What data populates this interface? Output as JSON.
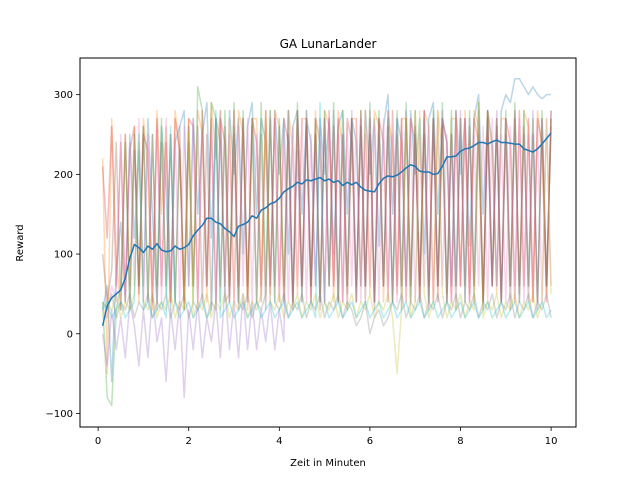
{
  "chart_data": {
    "type": "line",
    "title": "GA LunarLander",
    "xlabel": "Zeit in Minuten",
    "ylabel": "Reward",
    "xlim": [
      -0.4,
      10.55
    ],
    "ylim": [
      -117,
      346
    ],
    "xticks": [
      0,
      2,
      4,
      6,
      8,
      10
    ],
    "yticks": [
      -100,
      0,
      100,
      200,
      300
    ],
    "grid": false,
    "legend": "none",
    "x": [
      0.1,
      0.2,
      0.3,
      0.4,
      0.5,
      0.6,
      0.7,
      0.8,
      0.9,
      1.0,
      1.1,
      1.2,
      1.3,
      1.4,
      1.5,
      1.6,
      1.7,
      1.8,
      1.9,
      2.0,
      2.1,
      2.2,
      2.3,
      2.4,
      2.5,
      2.6,
      2.7,
      2.8,
      2.9,
      3.0,
      3.1,
      3.2,
      3.3,
      3.4,
      3.5,
      3.6,
      3.7,
      3.8,
      3.9,
      4.0,
      4.1,
      4.2,
      4.3,
      4.4,
      4.5,
      4.6,
      4.7,
      4.8,
      4.9,
      5.0,
      5.1,
      5.2,
      5.3,
      5.4,
      5.5,
      5.6,
      5.7,
      5.8,
      5.9,
      6.0,
      6.1,
      6.2,
      6.3,
      6.4,
      6.5,
      6.6,
      6.7,
      6.8,
      6.9,
      7.0,
      7.1,
      7.2,
      7.3,
      7.4,
      7.5,
      7.6,
      7.7,
      7.8,
      7.9,
      8.0,
      8.1,
      8.2,
      8.3,
      8.4,
      8.5,
      8.6,
      8.7,
      8.8,
      8.9,
      9.0,
      9.1,
      9.2,
      9.3,
      9.4,
      9.5,
      9.6,
      9.7,
      9.8,
      9.9,
      10.0
    ],
    "series": [
      {
        "values": [
          10,
          35,
          45,
          50,
          55,
          70,
          95,
          112,
          108,
          102,
          110,
          106,
          113,
          105,
          103,
          104,
          110,
          106,
          108,
          112,
          123,
          130,
          136,
          145,
          145,
          140,
          138,
          132,
          128,
          122,
          135,
          137,
          140,
          148,
          145,
          155,
          158,
          163,
          165,
          170,
          178,
          182,
          185,
          190,
          188,
          193,
          192,
          194,
          196,
          192,
          194,
          190,
          192,
          186,
          190,
          187,
          190,
          184,
          180,
          179,
          178,
          188,
          195,
          198,
          197,
          199,
          203,
          208,
          212,
          210,
          204,
          203,
          203,
          200,
          201,
          210,
          222,
          222,
          223,
          229,
          232,
          233,
          236,
          240,
          240,
          238,
          241,
          243,
          240,
          240,
          239,
          238,
          238,
          232,
          230,
          228,
          232,
          238,
          245,
          252
        ],
        "color": "#1f77b4",
        "opacity": 1.0,
        "width": 1.5
      },
      {
        "values": [
          30,
          60,
          -60,
          80,
          140,
          40,
          250,
          120,
          230,
          60,
          270,
          150,
          40,
          260,
          180,
          30,
          240,
          260,
          280,
          60,
          270,
          150,
          250,
          290,
          120,
          270,
          240,
          60,
          280,
          200,
          270,
          100,
          260,
          290,
          150,
          270,
          240,
          60,
          280,
          200,
          270,
          100,
          260,
          280,
          150,
          270,
          240,
          60,
          270,
          200,
          270,
          100,
          260,
          280,
          150,
          270,
          240,
          60,
          280,
          200,
          270,
          110,
          260,
          300,
          150,
          270,
          240,
          60,
          280,
          200,
          270,
          100,
          270,
          290,
          150,
          270,
          240,
          60,
          280,
          200,
          270,
          110,
          270,
          300,
          150,
          280,
          240,
          60,
          280,
          300,
          290,
          320,
          320,
          310,
          300,
          310,
          300,
          295,
          300,
          300
        ],
        "color": "#1f77b4",
        "opacity": 0.3,
        "width": 1.5
      },
      {
        "values": [
          220,
          -50,
          270,
          100,
          30,
          250,
          60,
          260,
          40,
          270,
          200,
          30,
          280,
          150,
          260,
          40,
          280,
          230,
          30,
          270,
          60,
          280,
          250,
          40,
          290,
          220,
          280,
          60,
          270,
          40,
          280,
          250,
          30,
          270,
          270,
          60,
          280,
          50,
          280,
          260,
          40,
          280,
          230,
          50,
          270,
          270,
          60,
          280,
          50,
          280,
          260,
          40,
          280,
          230,
          50,
          270,
          270,
          60,
          280,
          50,
          280,
          260,
          40,
          280,
          230,
          50,
          270,
          270,
          60,
          280,
          50,
          280,
          260,
          40,
          280,
          230,
          50,
          270,
          270,
          60,
          280,
          50,
          280,
          260,
          40,
          280,
          230,
          50,
          270,
          270,
          60,
          280,
          50,
          280,
          260,
          40,
          280,
          230,
          50,
          270
        ],
        "color": "#ff7f0e",
        "opacity": 0.3,
        "width": 1.5
      },
      {
        "values": [
          40,
          -80,
          -90,
          30,
          60,
          240,
          30,
          250,
          60,
          260,
          40,
          250,
          60,
          270,
          50,
          250,
          40,
          230,
          60,
          260,
          40,
          310,
          280,
          60,
          290,
          270,
          40,
          280,
          60,
          290,
          40,
          280,
          50,
          270,
          40,
          290,
          60,
          280,
          40,
          270,
          60,
          280,
          40,
          290,
          40,
          280,
          60,
          270,
          40,
          280,
          60,
          290,
          40,
          280,
          60,
          270,
          40,
          280,
          60,
          290,
          40,
          280,
          60,
          270,
          40,
          280,
          60,
          290,
          40,
          280,
          60,
          270,
          40,
          280,
          60,
          290,
          40,
          280,
          60,
          270,
          40,
          280,
          60,
          290,
          40,
          280,
          60,
          270,
          40,
          280,
          60,
          290,
          40,
          280,
          60,
          270,
          40,
          280,
          60,
          270
        ],
        "color": "#2ca02c",
        "opacity": 0.3,
        "width": 1.5
      },
      {
        "values": [
          210,
          120,
          260,
          60,
          240,
          40,
          230,
          260,
          50,
          250,
          230,
          40,
          270,
          60,
          240,
          40,
          270,
          230,
          40,
          270,
          260,
          40,
          280,
          60,
          270,
          40,
          270,
          240,
          40,
          280,
          60,
          270,
          40,
          270,
          240,
          40,
          280,
          60,
          270,
          40,
          270,
          240,
          40,
          280,
          60,
          270,
          40,
          270,
          240,
          40,
          280,
          60,
          270,
          40,
          270,
          240,
          40,
          280,
          60,
          270,
          40,
          270,
          240,
          40,
          280,
          60,
          270,
          40,
          270,
          240,
          40,
          280,
          60,
          270,
          40,
          270,
          240,
          40,
          280,
          60,
          270,
          40,
          270,
          240,
          40,
          280,
          60,
          270,
          40,
          270,
          240,
          40,
          280,
          60,
          270,
          40,
          270,
          240,
          40,
          280
        ],
        "color": "#d62728",
        "opacity": 0.3,
        "width": 1.5
      },
      {
        "values": [
          0,
          -40,
          30,
          -20,
          20,
          -30,
          40,
          10,
          -40,
          30,
          -30,
          50,
          -10,
          20,
          -60,
          30,
          -20,
          40,
          -80,
          30,
          -20,
          40,
          -30,
          20,
          -10,
          40,
          -30,
          60,
          -20,
          40,
          -30,
          50,
          -20,
          40,
          -20,
          30,
          -10,
          40,
          -20,
          30,
          -10,
          280,
          40,
          230,
          40,
          280,
          60,
          250,
          40,
          270,
          60,
          280,
          40,
          250,
          60,
          280,
          40,
          270,
          60,
          280,
          40,
          250,
          60,
          280,
          40,
          270,
          60,
          280,
          40,
          250,
          60,
          280,
          40,
          270,
          60,
          280,
          40,
          250,
          60,
          280,
          40,
          270,
          60,
          280,
          40,
          250,
          60,
          280,
          40,
          270,
          60,
          280,
          40,
          250,
          60,
          280,
          40,
          270,
          60,
          280
        ],
        "color": "#9467bd",
        "opacity": 0.3,
        "width": 1.5
      },
      {
        "values": [
          100,
          40,
          80,
          240,
          30,
          250,
          40,
          230,
          60,
          260,
          40,
          250,
          30,
          240,
          60,
          250,
          40,
          260,
          30,
          240,
          60,
          260,
          40,
          250,
          30,
          270,
          60,
          260,
          40,
          250,
          30,
          270,
          60,
          260,
          40,
          250,
          30,
          270,
          60,
          260,
          40,
          250,
          30,
          270,
          60,
          260,
          40,
          250,
          30,
          270,
          60,
          260,
          40,
          250,
          30,
          270,
          60,
          260,
          40,
          250,
          30,
          270,
          60,
          260,
          40,
          250,
          30,
          270,
          60,
          260,
          40,
          250,
          30,
          270,
          60,
          260,
          40,
          250,
          30,
          270,
          60,
          260,
          40,
          250,
          30,
          270,
          60,
          260,
          40,
          250,
          30,
          270,
          60,
          260,
          40,
          250,
          30,
          270,
          60,
          260
        ],
        "color": "#8c564b",
        "opacity": 0.3,
        "width": 1.5
      },
      {
        "values": [
          30,
          20,
          60,
          40,
          250,
          50,
          240,
          60,
          270,
          40,
          250,
          60,
          260,
          40,
          270,
          60,
          250,
          40,
          260,
          60,
          270,
          40,
          250,
          60,
          260,
          40,
          270,
          60,
          250,
          40,
          260,
          60,
          270,
          40,
          250,
          60,
          260,
          40,
          270,
          60,
          250,
          40,
          260,
          60,
          270,
          40,
          250,
          60,
          260,
          40,
          270,
          60,
          250,
          40,
          260,
          60,
          270,
          40,
          250,
          60,
          260,
          40,
          270,
          60,
          250,
          40,
          260,
          60,
          270,
          40,
          250,
          60,
          260,
          40,
          270,
          60,
          250,
          40,
          260,
          60,
          270,
          40,
          250,
          60,
          260,
          40,
          270,
          60,
          250,
          40,
          260,
          60,
          270,
          40,
          250,
          60,
          260,
          40,
          270,
          60
        ],
        "color": "#e377c2",
        "opacity": 0.3,
        "width": 1.5
      },
      {
        "values": [
          40,
          30,
          50,
          20,
          40,
          30,
          50,
          20,
          40,
          30,
          50,
          20,
          40,
          30,
          50,
          20,
          40,
          30,
          50,
          20,
          40,
          30,
          50,
          20,
          40,
          30,
          280,
          40,
          50,
          260,
          40,
          30,
          50,
          20,
          40,
          30,
          50,
          280,
          40,
          30,
          50,
          20,
          40,
          30,
          50,
          20,
          40,
          30,
          50,
          20,
          40,
          30,
          50,
          20,
          40,
          30,
          10,
          20,
          40,
          0,
          20,
          30,
          10,
          20,
          40,
          30,
          50,
          20,
          40,
          30,
          50,
          20,
          40,
          30,
          50,
          20,
          40,
          30,
          50,
          20,
          40,
          30,
          50,
          20,
          40,
          30,
          50,
          20,
          40,
          30,
          50,
          20,
          40,
          30,
          50,
          20,
          40,
          30,
          50,
          20
        ],
        "color": "#7f7f7f",
        "opacity": 0.3,
        "width": 1.5
      },
      {
        "values": [
          20,
          40,
          30,
          50,
          20,
          40,
          30,
          50,
          240,
          40,
          30,
          50,
          20,
          40,
          30,
          50,
          20,
          40,
          30,
          250,
          20,
          40,
          30,
          50,
          20,
          40,
          30,
          50,
          20,
          40,
          30,
          50,
          20,
          40,
          30,
          50,
          270,
          40,
          30,
          50,
          20,
          40,
          30,
          50,
          20,
          40,
          30,
          50,
          20,
          40,
          30,
          50,
          20,
          40,
          30,
          50,
          20,
          40,
          30,
          50,
          20,
          40,
          30,
          50,
          20,
          -50,
          30,
          270,
          20,
          40,
          280,
          50,
          20,
          40,
          280,
          50,
          20,
          40,
          30,
          50,
          20,
          40,
          30,
          290,
          20,
          40,
          30,
          50,
          20,
          40,
          30,
          50,
          20,
          40,
          30,
          50,
          20,
          40,
          270,
          50
        ],
        "color": "#bcbd22",
        "opacity": 0.3,
        "width": 1.5
      },
      {
        "values": [
          30,
          40,
          20,
          30,
          40,
          20,
          30,
          40,
          250,
          30,
          40,
          20,
          30,
          40,
          20,
          260,
          40,
          20,
          30,
          40,
          20,
          30,
          40,
          20,
          30,
          280,
          20,
          30,
          40,
          20,
          30,
          40,
          20,
          30,
          40,
          20,
          30,
          40,
          20,
          30,
          40,
          20,
          30,
          40,
          20,
          30,
          40,
          20,
          290,
          40,
          20,
          30,
          40,
          20,
          30,
          40,
          20,
          30,
          40,
          20,
          30,
          40,
          20,
          30,
          40,
          20,
          30,
          40,
          20,
          30,
          40,
          20,
          30,
          40,
          20,
          30,
          40,
          20,
          30,
          40,
          20,
          30,
          40,
          20,
          30,
          40,
          20,
          30,
          40,
          20,
          30,
          40,
          20,
          30,
          40,
          20,
          30,
          40,
          20,
          30
        ],
        "color": "#17becf",
        "opacity": 0.3,
        "width": 1.5
      }
    ]
  }
}
